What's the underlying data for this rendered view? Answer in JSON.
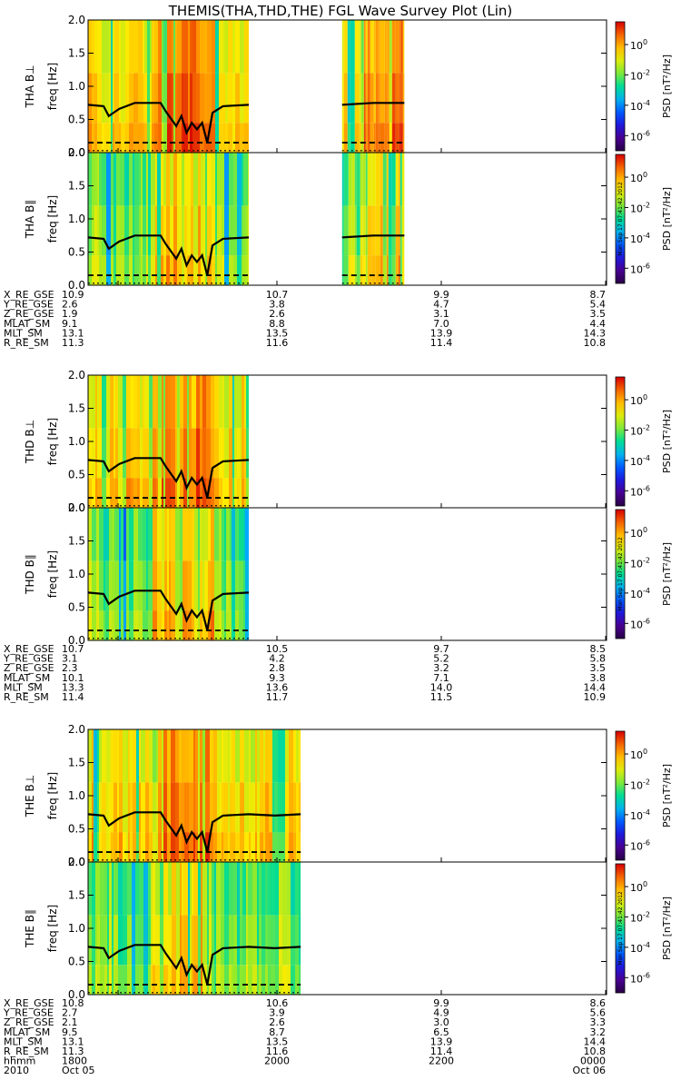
{
  "title": "THEMIS(THA,THD,THE) FGL Wave Survey Plot (Lin)",
  "stamp": "Mon Sep 17 07:41:42 2012",
  "chart_data": {
    "type": "heatmap",
    "x_ticks": [
      "1800",
      "2000",
      "2200",
      "0000"
    ],
    "x_dates": {
      "left": "Oct 05",
      "right": "Oct 06"
    },
    "x_row_label": "hhmm",
    "year_label": "2010",
    "y_axis_label": "freq [Hz]",
    "ylim": [
      0,
      2.0
    ],
    "y_ticks": [
      "0.0",
      "0.5",
      "1.0",
      "1.5",
      "2.0"
    ],
    "colorbar_label": "PSD [nT²/Hz]",
    "colorbar_ticks": [
      {
        "mantissa": "10",
        "exp": "0",
        "log": 0
      },
      {
        "mantissa": "10",
        "exp": "-2",
        "log": -2
      },
      {
        "mantissa": "10",
        "exp": "-4",
        "log": -4
      },
      {
        "mantissa": "10",
        "exp": "-6",
        "log": -6
      }
    ],
    "colorbar_range_log": [
      -7,
      1.5
    ],
    "probes": [
      {
        "panels": [
          {
            "label": "THA B⊥",
            "coverage": [
              [
                0.0,
                0.31
              ],
              [
                0.49,
                0.61
              ]
            ],
            "background": "warm"
          },
          {
            "label": "THA B∥",
            "coverage": [
              [
                0.0,
                0.31
              ],
              [
                0.49,
                0.61
              ]
            ],
            "background": "cool"
          }
        ],
        "ephemeris": [
          {
            "name": "X_RE_GSE",
            "values": [
              "10.9",
              "10.7",
              "9.9",
              "8.7"
            ]
          },
          {
            "name": "Y_RE_GSE",
            "values": [
              "2.6",
              "3.8",
              "4.7",
              "5.4"
            ]
          },
          {
            "name": "Z_RE_GSE",
            "values": [
              "1.9",
              "2.6",
              "3.1",
              "3.5"
            ]
          },
          {
            "name": "MLAT_SM",
            "values": [
              "9.1",
              "8.8",
              "7.0",
              "4.4"
            ]
          },
          {
            "name": "MLT_SM",
            "values": [
              "13.1",
              "13.5",
              "13.9",
              "14.3"
            ]
          },
          {
            "name": "R_RE_SM",
            "values": [
              "11.3",
              "11.6",
              "11.4",
              "10.8"
            ]
          }
        ]
      },
      {
        "panels": [
          {
            "label": "THD B⊥",
            "coverage": [
              [
                0.0,
                0.31
              ]
            ],
            "background": "warm"
          },
          {
            "label": "THD B∥",
            "coverage": [
              [
                0.0,
                0.31
              ]
            ],
            "background": "cool"
          }
        ],
        "ephemeris": [
          {
            "name": "X_RE_GSE",
            "values": [
              "10.7",
              "10.5",
              "9.7",
              "8.5"
            ]
          },
          {
            "name": "Y_RE_GSE",
            "values": [
              "3.1",
              "4.2",
              "5.2",
              "5.8"
            ]
          },
          {
            "name": "Z_RE_GSE",
            "values": [
              "2.3",
              "2.8",
              "3.2",
              "3.5"
            ]
          },
          {
            "name": "MLAT_SM",
            "values": [
              "10.1",
              "9.3",
              "7.1",
              "3.8"
            ]
          },
          {
            "name": "MLT_SM",
            "values": [
              "13.3",
              "13.6",
              "14.0",
              "14.4"
            ]
          },
          {
            "name": "R_RE_SM",
            "values": [
              "11.4",
              "11.7",
              "11.5",
              "10.9"
            ]
          }
        ]
      },
      {
        "panels": [
          {
            "label": "THE B⊥",
            "coverage": [
              [
                0.0,
                0.41
              ]
            ],
            "background": "warm"
          },
          {
            "label": "THE B∥",
            "coverage": [
              [
                0.0,
                0.41
              ]
            ],
            "background": "cool"
          }
        ],
        "ephemeris": [
          {
            "name": "X_RE_GSE",
            "values": [
              "10.8",
              "10.6",
              "9.9",
              "8.6"
            ]
          },
          {
            "name": "Y_RE_GSE",
            "values": [
              "2.7",
              "3.9",
              "4.9",
              "5.6"
            ]
          },
          {
            "name": "Z_RE_GSE",
            "values": [
              "2.1",
              "2.6",
              "3.0",
              "3.3"
            ]
          },
          {
            "name": "MLAT_SM",
            "values": [
              "9.5",
              "8.7",
              "6.5",
              "3.2"
            ]
          },
          {
            "name": "MLT_SM",
            "values": [
              "13.1",
              "13.5",
              "13.9",
              "14.4"
            ]
          },
          {
            "name": "R_RE_SM",
            "values": [
              "11.3",
              "11.6",
              "11.4",
              "10.8"
            ]
          }
        ]
      }
    ],
    "overlay_lines": {
      "solid_fraction_of_fce": [
        [
          0,
          0.72
        ],
        [
          0.03,
          0.7
        ],
        [
          0.04,
          0.55
        ],
        [
          0.06,
          0.66
        ],
        [
          0.09,
          0.75
        ],
        [
          0.14,
          0.75
        ],
        [
          0.15,
          0.62
        ],
        [
          0.17,
          0.4
        ],
        [
          0.18,
          0.55
        ],
        [
          0.19,
          0.3
        ],
        [
          0.2,
          0.45
        ],
        [
          0.21,
          0.35
        ],
        [
          0.22,
          0.45
        ],
        [
          0.23,
          0.15
        ],
        [
          0.24,
          0.6
        ],
        [
          0.26,
          0.7
        ],
        [
          0.31,
          0.72
        ],
        [
          0.36,
          0.7
        ],
        [
          0.41,
          0.72
        ],
        [
          0.49,
          0.72
        ],
        [
          0.55,
          0.75
        ],
        [
          0.61,
          0.75
        ]
      ],
      "dashed_level": 0.15,
      "dotted_level": 0.03
    }
  }
}
